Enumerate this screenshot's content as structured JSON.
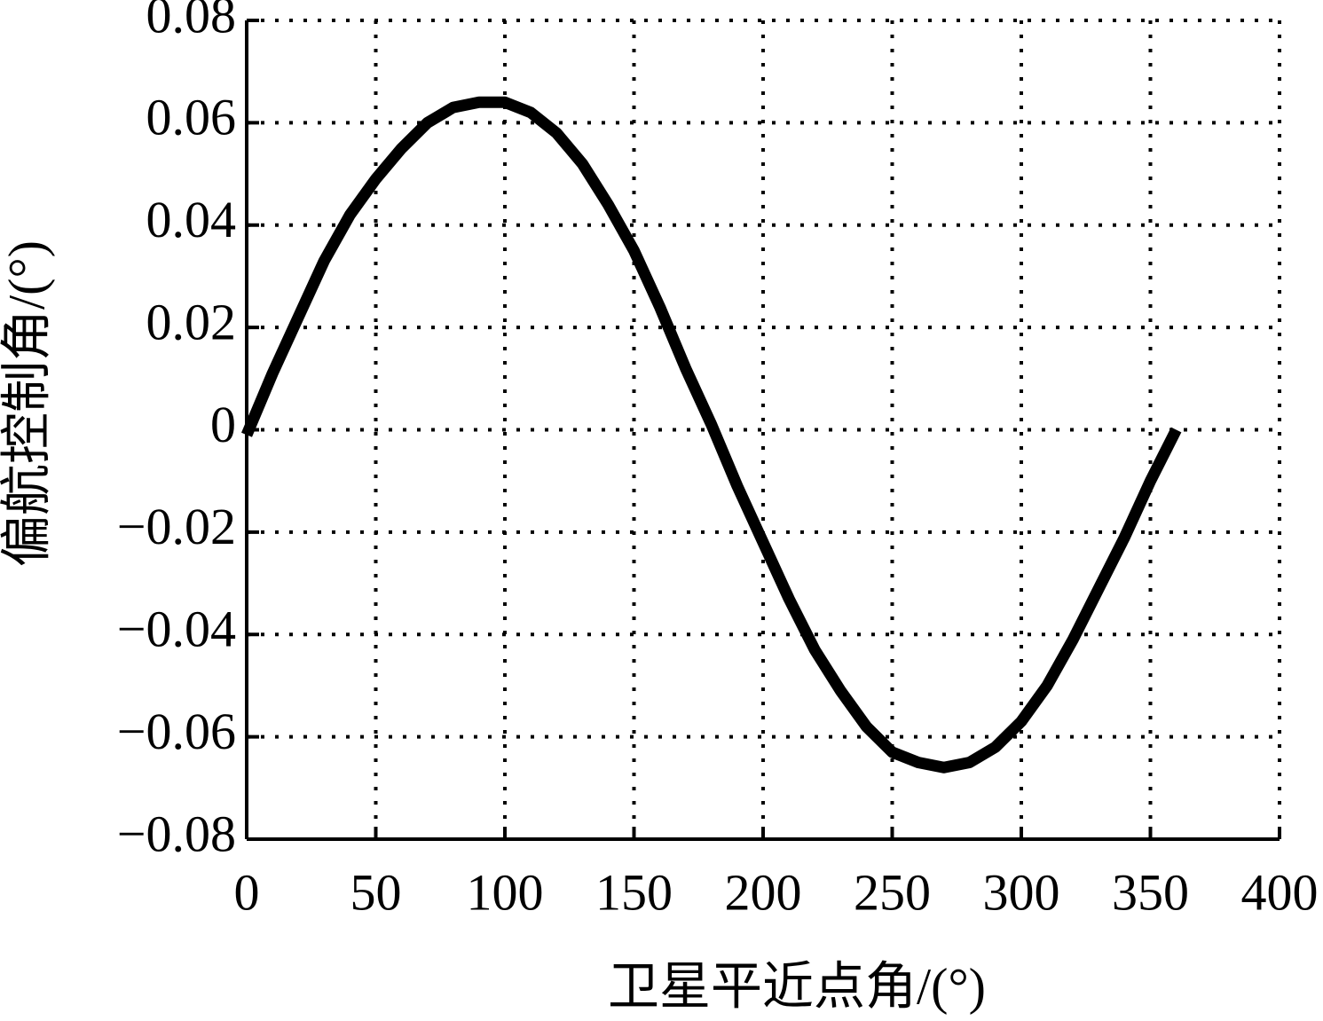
{
  "chart_data": {
    "type": "line",
    "x_label": "卫星平近点角/(°)",
    "y_label": "偏航控制角/(°)",
    "x": [
      0,
      10,
      20,
      30,
      40,
      50,
      60,
      70,
      80,
      90,
      100,
      110,
      120,
      130,
      140,
      150,
      160,
      170,
      180,
      190,
      200,
      210,
      220,
      230,
      240,
      250,
      260,
      270,
      280,
      290,
      300,
      310,
      320,
      330,
      340,
      350,
      360
    ],
    "series": [
      {
        "color": "#000000",
        "values": [
          -0.001,
          0.011,
          0.022,
          0.033,
          0.042,
          0.049,
          0.055,
          0.06,
          0.063,
          0.064,
          0.064,
          0.062,
          0.058,
          0.052,
          0.044,
          0.035,
          0.024,
          0.012,
          0.001,
          -0.011,
          -0.022,
          -0.033,
          -0.043,
          -0.051,
          -0.058,
          -0.063,
          -0.065,
          -0.066,
          -0.065,
          -0.062,
          -0.057,
          -0.05,
          -0.041,
          -0.031,
          -0.021,
          -0.01,
          0.0
        ]
      }
    ],
    "xlim": [
      0,
      400
    ],
    "xticks": [
      0,
      50,
      100,
      150,
      200,
      250,
      300,
      350,
      400
    ],
    "ylim": [
      -0.08,
      0.08
    ],
    "yticks": [
      {
        "value": -0.08,
        "label": "−0.08"
      },
      {
        "value": -0.06,
        "label": "−0.06"
      },
      {
        "value": -0.04,
        "label": "−0.04"
      },
      {
        "value": -0.02,
        "label": "−0.02"
      },
      0,
      0.02,
      0.04,
      0.06,
      0.08
    ],
    "grid": true
  }
}
